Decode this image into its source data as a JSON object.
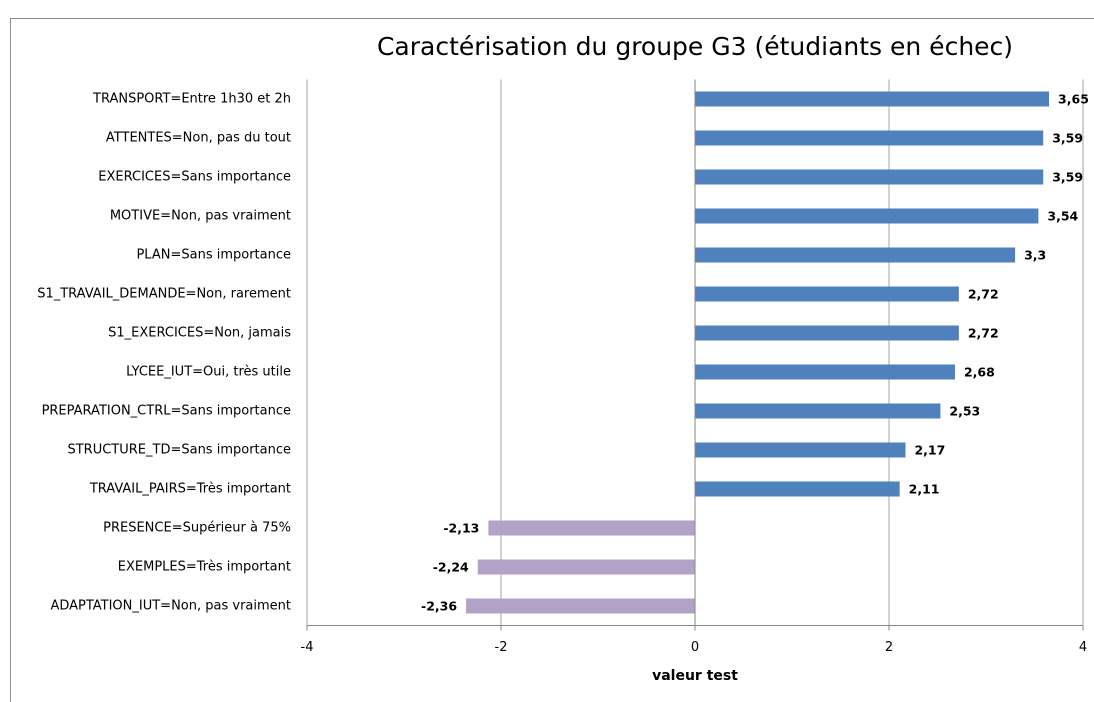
{
  "chart_data": {
    "type": "barh",
    "title": "Caractérisation du groupe G3 (étudiants en échec)",
    "x_label": "valeur test",
    "categories": [
      "TRANSPORT=Entre 1h30 et 2h",
      "ATTENTES=Non, pas du tout",
      "EXERCICES=Sans importance",
      "MOTIVE=Non, pas vraiment",
      "PLAN=Sans importance",
      "S1_TRAVAIL_DEMANDE=Non, rarement",
      "S1_EXERCICES=Non, jamais",
      "LYCEE_IUT=Oui, très utile",
      "PREPARATION_CTRL=Sans importance",
      "STRUCTURE_TD=Sans importance",
      "TRAVAIL_PAIRS=Très important",
      "PRESENCE=Supérieur à 75%",
      "EXEMPLES=Très important",
      "ADAPTATION_IUT=Non, pas vraiment"
    ],
    "values": [
      3.65,
      3.59,
      3.59,
      3.54,
      3.3,
      2.72,
      2.72,
      2.68,
      2.53,
      2.17,
      2.11,
      -2.13,
      -2.24,
      -2.36
    ],
    "value_labels": [
      "3,65",
      "3,59",
      "3,59",
      "3,54",
      "3,3",
      "2,72",
      "2,72",
      "2,68",
      "2,53",
      "2,17",
      "2,11",
      "-2,13",
      "-2,24",
      "-2,36"
    ],
    "positive_color": "#4f81bd",
    "negative_color": "#b3a2c7",
    "xlim": [
      -4,
      4
    ],
    "xticks": [
      -4,
      -2,
      0,
      2,
      4
    ],
    "grid": true
  }
}
